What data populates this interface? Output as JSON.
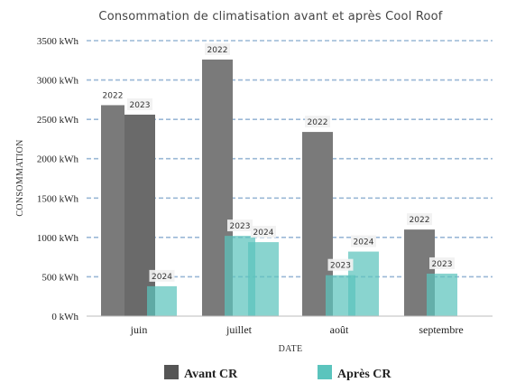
{
  "chart_data": {
    "type": "bar",
    "title": "Consommation de climatisation avant et après Cool Roof",
    "xlabel": "DATE",
    "ylabel": "CONSOMMATION",
    "ylim": [
      0,
      3500
    ],
    "ytick_values": [
      0,
      500,
      1000,
      1500,
      2000,
      2500,
      3000,
      3500
    ],
    "ytick_labels": [
      "0 kWh",
      "500 kWh",
      "1000 kWh",
      "1500 kWh",
      "2000 kWh",
      "2500 kWh",
      "3000 kWh",
      "3500 kWh"
    ],
    "categories": [
      "juin",
      "juillet",
      "août",
      "septembre"
    ],
    "grid": true,
    "legend_position": "bottom",
    "legend": [
      {
        "label": "Avant CR",
        "color": "#555555"
      },
      {
        "label": "Après CR",
        "color": "#5bc4bd"
      }
    ],
    "bars": [
      {
        "category": "juin",
        "label": "2022",
        "value": 2680,
        "group": "Avant CR"
      },
      {
        "category": "juin",
        "label": "2023",
        "value": 2560,
        "group": "Avant CR"
      },
      {
        "category": "juin",
        "label": "2024",
        "value": 380,
        "group": "Après CR"
      },
      {
        "category": "juillet",
        "label": "2022",
        "value": 3260,
        "group": "Avant CR"
      },
      {
        "category": "juillet",
        "label": "2023",
        "value": 1020,
        "group": "Après CR"
      },
      {
        "category": "juillet",
        "label": "2024",
        "value": 940,
        "group": "Après CR"
      },
      {
        "category": "août",
        "label": "2022",
        "value": 2340,
        "group": "Avant CR"
      },
      {
        "category": "août",
        "label": "2023",
        "value": 520,
        "group": "Après CR"
      },
      {
        "category": "août",
        "label": "2024",
        "value": 820,
        "group": "Après CR"
      },
      {
        "category": "septembre",
        "label": "2022",
        "value": 1100,
        "group": "Avant CR"
      },
      {
        "category": "septembre",
        "label": "2023",
        "value": 540,
        "group": "Après CR"
      }
    ]
  }
}
